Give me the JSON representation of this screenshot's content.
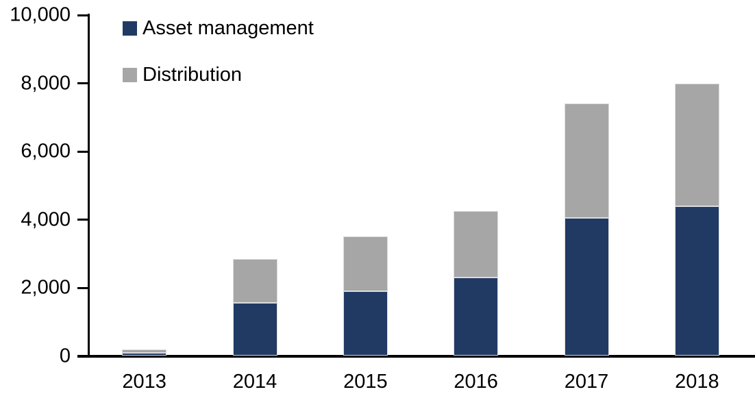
{
  "chart_data": {
    "type": "bar",
    "stacked": true,
    "title": "",
    "xlabel": "",
    "ylabel": "",
    "categories": [
      "2013",
      "2014",
      "2015",
      "2016",
      "2017",
      "2018"
    ],
    "series": [
      {
        "name": "Asset management",
        "color": "#203A64",
        "values": [
          100,
          1550,
          1900,
          2300,
          4050,
          4400
        ]
      },
      {
        "name": "Distribution",
        "color": "#A6A6A6",
        "values": [
          90,
          1300,
          1600,
          1950,
          3350,
          3600
        ]
      }
    ],
    "totals": [
      190,
      2850,
      3500,
      4250,
      7400,
      8000
    ],
    "ylim": [
      0,
      10000
    ],
    "yticks": [
      0,
      2000,
      4000,
      6000,
      8000,
      10000
    ],
    "ytick_labels": [
      "0",
      "2,000",
      "4,000",
      "6,000",
      "8,000",
      "10,000"
    ],
    "legend_position": "top-left",
    "grid": false
  },
  "colors": {
    "axis": "#000000",
    "background": "#FFFFFF",
    "bar_border": "#DCDCDC"
  }
}
